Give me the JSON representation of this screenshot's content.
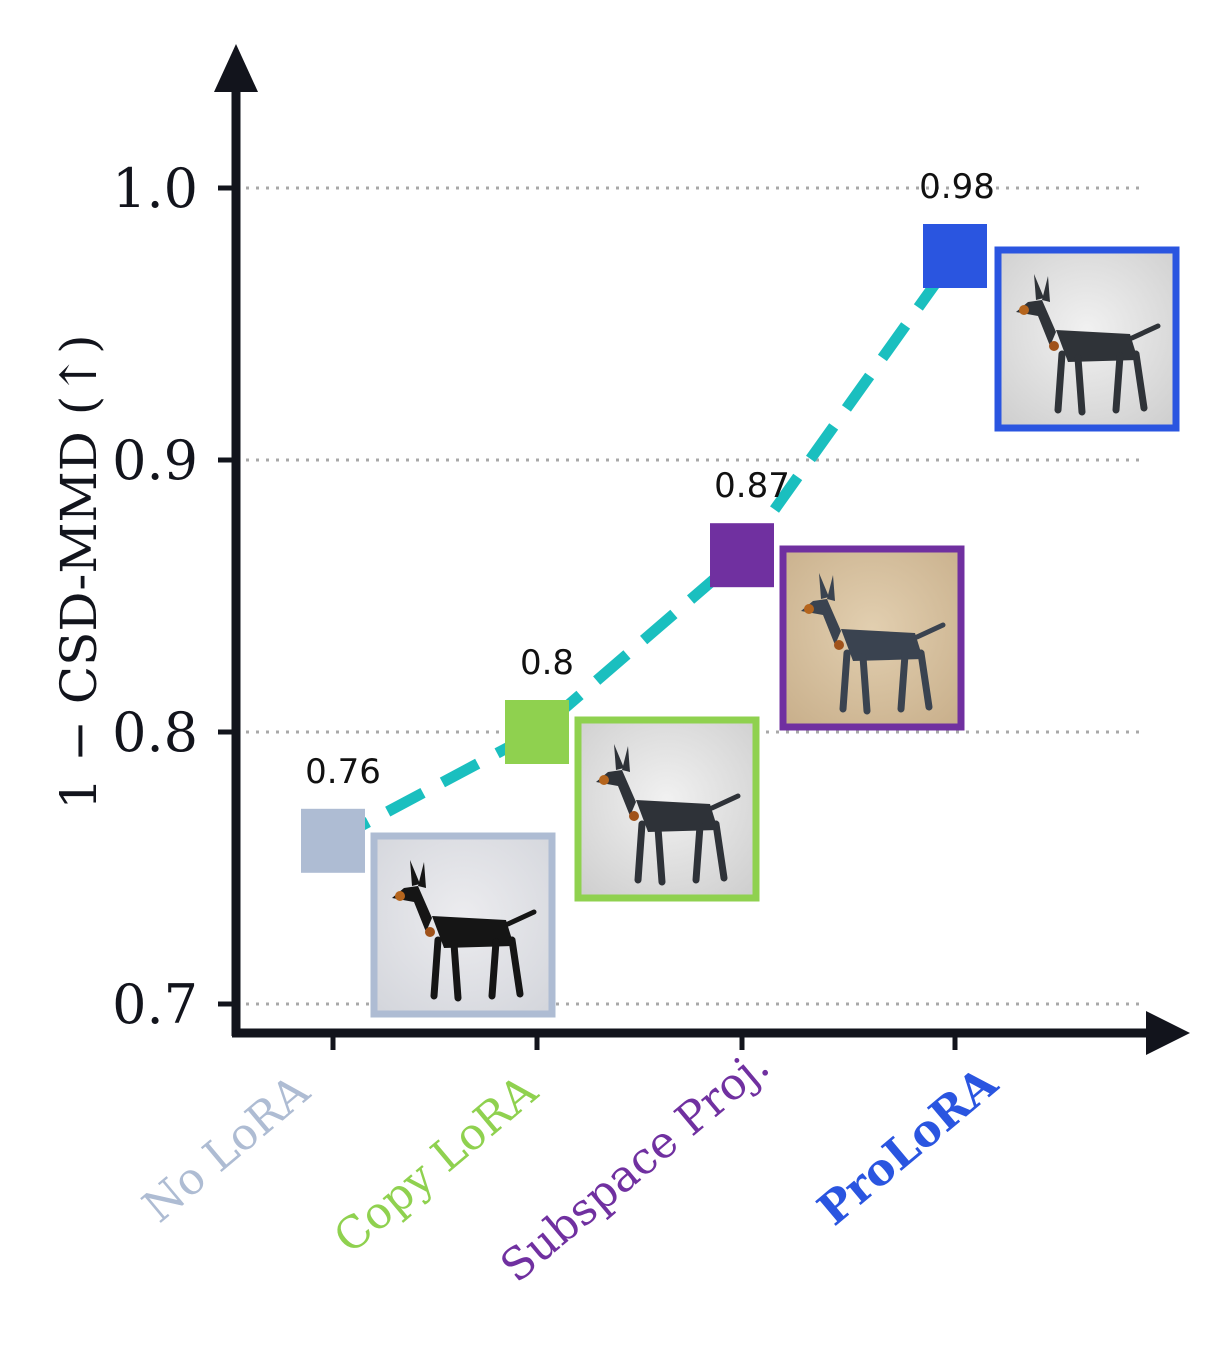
{
  "chart_data": {
    "type": "line",
    "categories": [
      "No LoRA",
      "Copy LoRA",
      "Subspace Proj.",
      "ProLoRA"
    ],
    "values": [
      0.76,
      0.8,
      0.865,
      0.975
    ],
    "data_labels": [
      "0.76",
      "0.8",
      "0.87",
      "0.98"
    ],
    "colors": [
      "#aebcd3",
      "#8fd14f",
      "#7030a0",
      "#2a55e0"
    ],
    "line_color": "#1abfbf",
    "line_style": "dashed",
    "ylabel": "1 − CSD-MMD (↑)",
    "xlabel": "",
    "title": "",
    "ylim": [
      0.69,
      1.05
    ],
    "yticks": [
      0.7,
      0.8,
      0.9,
      1.0
    ],
    "ytick_labels": [
      "0.7",
      "0.8",
      "0.9",
      "1.0"
    ],
    "grid": "horizontal dotted",
    "thumbnails": [
      "doberman-cartoon-thumbnail",
      "doberman-origami-grey-thumbnail",
      "doberman-origami-tan-thumbnail",
      "doberman-origami-standing-thumbnail"
    ],
    "category_label_bold": [
      false,
      false,
      false,
      true
    ]
  }
}
